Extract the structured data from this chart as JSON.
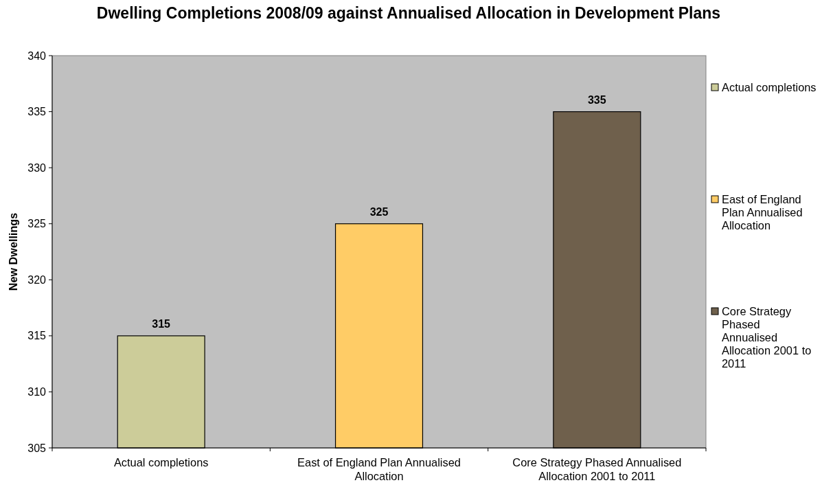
{
  "chart_data": {
    "type": "bar",
    "title": "Dwelling Completions 2008/09 against Annualised Allocation in Development Plans",
    "ylabel": "New Dwellings",
    "categories": [
      "Actual completions",
      "East of England Plan Annualised Allocation",
      "Core Strategy Phased Annualised Allocation 2001 to 2011"
    ],
    "series": [
      {
        "name": "Actual completions",
        "color": "#cccc99",
        "values": [
          315,
          null,
          null
        ]
      },
      {
        "name": "East of England Plan Annualised Allocation",
        "color": "#ffcc66",
        "values": [
          null,
          325,
          null
        ]
      },
      {
        "name": "Core Strategy Phased Annualised Allocation 2001 to 2011",
        "color": "#6f604c",
        "values": [
          null,
          null,
          335
        ]
      }
    ],
    "ylim": [
      305,
      340
    ],
    "yticks": [
      305,
      310,
      315,
      320,
      325,
      330,
      335,
      340
    ],
    "legend": "right",
    "data_labels": true
  }
}
